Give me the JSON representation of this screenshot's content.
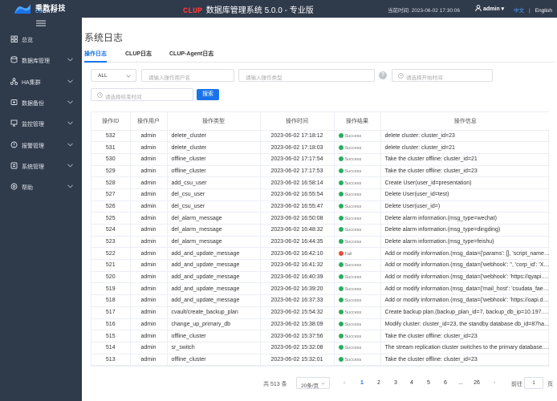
{
  "header": {
    "logo_cn": "乘数科技",
    "logo_en_a": "CS",
    "logo_en_b": "DATA",
    "brand": "CLUP",
    "title": " 数据库管理系统 5.0.0 - 专业版",
    "clock_label": "当前时间:",
    "clock_value": "2023-06-02 17:30:06",
    "user": "admin ▾",
    "lang_zh": "中文",
    "lang_sep": "|",
    "lang_en": "English"
  },
  "sidebar": {
    "items": [
      {
        "label": "总览",
        "icon": "grid-icon",
        "has_chevron": false
      },
      {
        "label": "数据库管理",
        "icon": "database-icon",
        "has_chevron": true
      },
      {
        "label": "HA集群",
        "icon": "cluster-icon",
        "has_chevron": true
      },
      {
        "label": "数据备份",
        "icon": "backup-icon",
        "has_chevron": true
      },
      {
        "label": "监控管理",
        "icon": "monitor-icon",
        "has_chevron": true
      },
      {
        "label": "报警管理",
        "icon": "alarm-icon",
        "has_chevron": true
      },
      {
        "label": "系统管理",
        "icon": "settings-icon",
        "has_chevron": true
      },
      {
        "label": "帮助",
        "icon": "help-icon",
        "has_chevron": true
      }
    ]
  },
  "main": {
    "page_title": "系统日志",
    "tabs": [
      {
        "label": "操作日志",
        "active": true
      },
      {
        "label": "CLUP日志",
        "active": false
      },
      {
        "label": "CLUP-Agent日志",
        "active": false
      }
    ],
    "filters": {
      "status_value": "ALL",
      "user_placeholder": "请输入操作用户名",
      "type_placeholder": "请输入操作类型",
      "start_placeholder": "请选择开始时间",
      "end_placeholder": "请选择结束时间",
      "search_label": "搜索"
    },
    "table": {
      "columns": [
        "操作ID",
        "操作用户",
        "操作类型",
        "操作时间",
        "操作结果",
        "操作信息"
      ],
      "rows": [
        {
          "id": "532",
          "user": "admin",
          "type": "delete_cluster",
          "time": "2023-06-02 17:18:12",
          "result": "Success",
          "ok": true,
          "info": "delete cluster: cluster_id=23"
        },
        {
          "id": "531",
          "user": "admin",
          "type": "delete_cluster",
          "time": "2023-06-02 17:18:03",
          "result": "Success",
          "ok": true,
          "info": "delete cluster: cluster_id=21"
        },
        {
          "id": "530",
          "user": "admin",
          "type": "offline_cluster",
          "time": "2023-06-02 17:17:54",
          "result": "Success",
          "ok": true,
          "info": "Take the cluster offline: cluster_id=21"
        },
        {
          "id": "529",
          "user": "admin",
          "type": "offline_cluster",
          "time": "2023-06-02 17:17:53",
          "result": "Success",
          "ok": true,
          "info": "Take the cluster offline: cluster_id=23"
        },
        {
          "id": "528",
          "user": "admin",
          "type": "add_csu_user",
          "time": "2023-06-02 16:58:14",
          "result": "Success",
          "ok": true,
          "info": "Create User(user_id=presentation)"
        },
        {
          "id": "527",
          "user": "admin",
          "type": "del_csu_user",
          "time": "2023-06-02 16:55:54",
          "result": "Success",
          "ok": true,
          "info": "Delete User(user_id=test)"
        },
        {
          "id": "526",
          "user": "admin",
          "type": "del_csu_user",
          "time": "2023-06-02 16:55:47",
          "result": "Success",
          "ok": true,
          "info": "Delete User(user_id=)"
        },
        {
          "id": "525",
          "user": "admin",
          "type": "del_alarm_message",
          "time": "2023-06-02 16:50:08",
          "result": "Success",
          "ok": true,
          "info": "Delete alarm information.(msg_type=wechat)"
        },
        {
          "id": "524",
          "user": "admin",
          "type": "del_alarm_message",
          "time": "2023-06-02 16:48:32",
          "result": "Success",
          "ok": true,
          "info": "Delete alarm information.(msg_type=dingding)"
        },
        {
          "id": "523",
          "user": "admin",
          "type": "del_alarm_message",
          "time": "2023-06-02 16:44:35",
          "result": "Success",
          "ok": true,
          "info": "Delete alarm information.(msg_type=feishu)"
        },
        {
          "id": "522",
          "user": "admin",
          "type": "add_and_update_message",
          "time": "2023-06-02 16:42:10",
          "result": "Fail",
          "ok": false,
          "info": "Add or modify information.(msg_data={'params': [], 'script_name': '..."
        },
        {
          "id": "521",
          "user": "admin",
          "type": "add_and_update_message",
          "time": "2023-06-02 16:41:32",
          "result": "Success",
          "ok": true,
          "info": "Add or modify information.(msg_data={'webhook': '', 'corp_id': 'XXX..."
        },
        {
          "id": "520",
          "user": "admin",
          "type": "add_and_update_message",
          "time": "2023-06-02 16:40:39",
          "result": "Success",
          "ok": true,
          "info": "Add or modify information.(msg_data={'webhook': 'https://qyapi.we..."
        },
        {
          "id": "519",
          "user": "admin",
          "type": "add_and_update_message",
          "time": "2023-06-02 16:39:20",
          "result": "Success",
          "ok": true,
          "info": "Add or modify information.(msg_data={'mail_host': 'csudata_faeio..."
        },
        {
          "id": "518",
          "user": "admin",
          "type": "add_and_update_message",
          "time": "2023-06-02 16:37:33",
          "result": "Success",
          "ok": true,
          "info": "Add or modify information.(msg_data={'webhook': 'https://oapi.ding..."
        },
        {
          "id": "517",
          "user": "admin",
          "type": "cvault/create_backup_plan",
          "time": "2023-06-02 15:54:32",
          "result": "Success",
          "ok": true,
          "info": "Create backup plan.(backup_plan_id=7, backup_db_ip=10.197.16..."
        },
        {
          "id": "516",
          "user": "admin",
          "type": "change_up_primary_db",
          "time": "2023-06-02 15:38:09",
          "result": "Success",
          "ok": true,
          "info": "Modify cluster: cluster_id=23, the standby database db_id=87have ..."
        },
        {
          "id": "515",
          "user": "admin",
          "type": "offline_cluster",
          "time": "2023-06-02 15:37:56",
          "result": "Success",
          "ok": true,
          "info": "Take the cluster offline: cluster_id=23"
        },
        {
          "id": "514",
          "user": "admin",
          "type": "sr_switch",
          "time": "2023-06-02 15:32:08",
          "result": "Success",
          "ok": true,
          "info": "The stream replication cluster switches to the primary database. cl..."
        },
        {
          "id": "513",
          "user": "admin",
          "type": "offline_cluster",
          "time": "2023-06-02 15:32:01",
          "result": "Success",
          "ok": true,
          "info": "Take the cluster offline: cluster_id=23"
        }
      ]
    },
    "pagination": {
      "total_label": "共 513 条",
      "page_size": "20条/页",
      "prev": "‹",
      "next": "›",
      "pages": [
        "1",
        "2",
        "3",
        "4",
        "5",
        "6",
        "...",
        "26"
      ],
      "current": "1",
      "goto_label": "前往",
      "goto_value": "1",
      "page_suffix": "页"
    }
  },
  "colors": {
    "topbar": "#2f3a4b",
    "accent": "#1a73e8",
    "success": "#27ae60",
    "fail": "#e74c3c",
    "brand_red": "#ff3b3b"
  }
}
